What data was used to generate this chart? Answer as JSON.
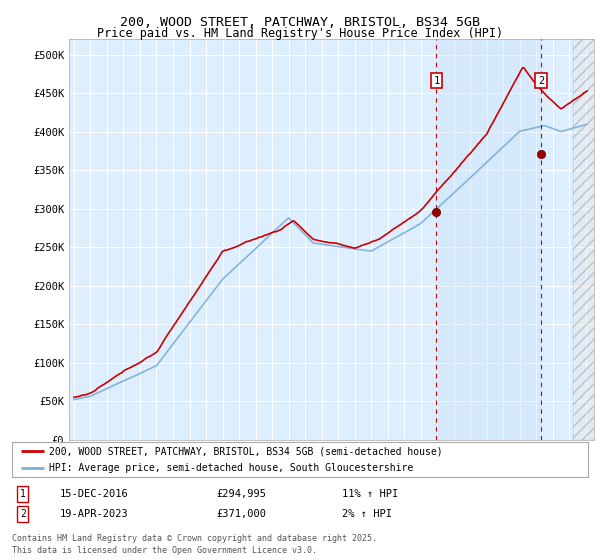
{
  "title_line1": "200, WOOD STREET, PATCHWAY, BRISTOL, BS34 5GB",
  "title_line2": "Price paid vs. HM Land Registry's House Price Index (HPI)",
  "ylim": [
    0,
    520000
  ],
  "yticks": [
    0,
    50000,
    100000,
    150000,
    200000,
    250000,
    300000,
    350000,
    400000,
    450000,
    500000
  ],
  "ytick_labels": [
    "£0",
    "£50K",
    "£100K",
    "£150K",
    "£200K",
    "£250K",
    "£300K",
    "£350K",
    "£400K",
    "£450K",
    "£500K"
  ],
  "background_color": "#ffffff",
  "plot_bg_color": "#ddeeff",
  "grid_color": "#ffffff",
  "hpi_color": "#7aafd4",
  "price_color": "#cc0000",
  "m1_x": 2016.96,
  "m2_x": 2023.3,
  "marker1_price": 294995,
  "marker2_price": 371000,
  "legend_line1": "200, WOOD STREET, PATCHWAY, BRISTOL, BS34 5GB (semi-detached house)",
  "legend_line2": "HPI: Average price, semi-detached house, South Gloucestershire",
  "footer": "Contains HM Land Registry data © Crown copyright and database right 2025.\nThis data is licensed under the Open Government Licence v3.0.",
  "xlim_left": 1994.7,
  "xlim_right": 2026.5
}
